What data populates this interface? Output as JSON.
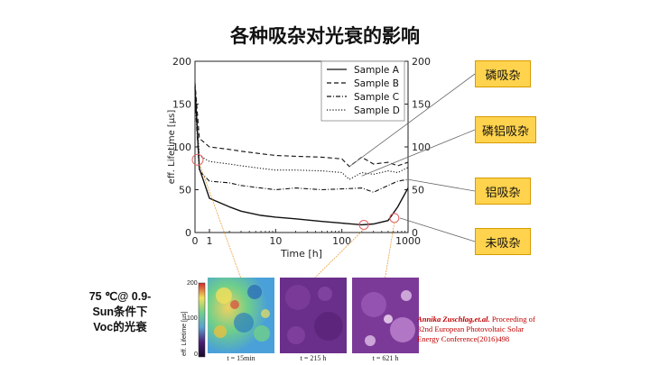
{
  "slide_title": "各种吸杂对光衰的影响",
  "chart_data": {
    "type": "line",
    "xlabel": "Time [h]",
    "ylabel": "eff. Lifetime [µs]",
    "x_scale": "symlog",
    "xlim": [
      0,
      1000
    ],
    "ylim": [
      0,
      200
    ],
    "x_ticks": [
      "0",
      "1",
      "10",
      "100",
      "1000"
    ],
    "y_ticks": [
      "0",
      "50",
      "100",
      "150",
      "200"
    ],
    "legend_position": "top-right",
    "series": [
      {
        "name": "Sample A",
        "style": "solid",
        "x": [
          0,
          0.3,
          1,
          2,
          3,
          6,
          10,
          20,
          50,
          100,
          200,
          300,
          500,
          700,
          1000
        ],
        "y": [
          170,
          75,
          40,
          30,
          25,
          20,
          18,
          16,
          13,
          11,
          9,
          10,
          14,
          30,
          52
        ]
      },
      {
        "name": "Sample B",
        "style": "dashed",
        "x": [
          0,
          0.3,
          1,
          2,
          3,
          6,
          10,
          20,
          50,
          100,
          130,
          200,
          300,
          500,
          700,
          1000
        ],
        "y": [
          175,
          110,
          100,
          97,
          95,
          92,
          90,
          89,
          88,
          86,
          77,
          88,
          80,
          82,
          78,
          82
        ]
      },
      {
        "name": "Sample C",
        "style": "dashdot",
        "x": [
          0,
          0.3,
          1,
          2,
          3,
          6,
          10,
          20,
          50,
          100,
          200,
          300,
          500,
          700,
          1000
        ],
        "y": [
          155,
          72,
          60,
          58,
          55,
          52,
          50,
          52,
          50,
          51,
          52,
          47,
          55,
          60,
          62
        ]
      },
      {
        "name": "Sample D",
        "style": "dotted",
        "x": [
          0,
          0.3,
          1,
          2,
          3,
          6,
          10,
          20,
          50,
          100,
          130,
          200,
          300,
          500,
          700,
          1000
        ],
        "y": [
          165,
          90,
          83,
          80,
          78,
          75,
          73,
          73,
          72,
          70,
          62,
          70,
          68,
          72,
          70,
          76
        ]
      }
    ]
  },
  "annotations": {
    "labels": [
      "磷吸杂",
      "磷铝吸杂",
      "铝吸杂",
      "未吸杂"
    ],
    "condition": [
      "75 ℃@ 0.9-",
      "Sun条件下",
      "Voc的光衰"
    ]
  },
  "reference": {
    "author": "Annika Zuschlag,et.al.",
    "line1_rest": " Proceeding of",
    "line2": "32nd European Photovoltaic Solar",
    "line3": "Energy Conference(2016)498"
  },
  "maps": {
    "colorbar_label": "eff. Lifetime [µs]",
    "colorbar_ticks": [
      "200",
      "100",
      "0"
    ],
    "captions": [
      "t = 15min",
      "t = 215 h",
      "t = 621 h"
    ]
  },
  "colors": {
    "label_fill": "#ffd34d",
    "marker_circle": "#e06060",
    "connector": "#e8a040",
    "reference_text": "#c00000"
  }
}
